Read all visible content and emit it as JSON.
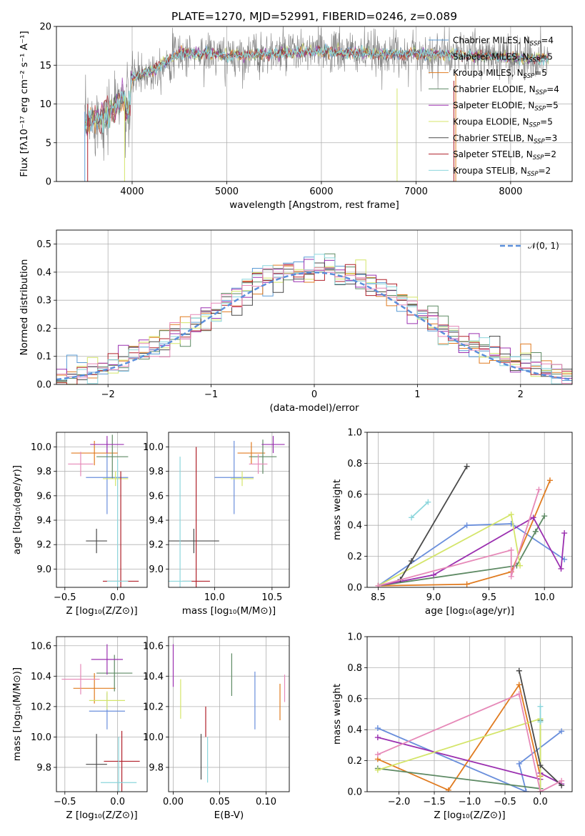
{
  "colors": {
    "Chabrier MILES": "#5b9bd5",
    "Salpeter MILES": "#a9a9a9",
    "Kroupa MILES": "#e07b20",
    "Chabrier ELODIE": "#5e8a64",
    "Salpeter ELODIE": "#9b30b0",
    "Kroupa ELODIE": "#d4e56a",
    "Chabrier STELIB": "#4a4a4a",
    "Salpeter STELIB": "#b0202a",
    "Kroupa STELIB": "#8cd6dc",
    "pink": "#e689b8",
    "blue2": "#6a8fdc",
    "gauss": "#5b8fdb",
    "grid": "#b0b0b0"
  },
  "chart_data": [
    {
      "type": "line",
      "title": "PLATE=1270, MJD=52991, FIBERID=0246, z=0.089",
      "xlabel": "wavelength [Angstrom, rest frame]",
      "ylabel": "Flux [fλ10⁻¹⁷ erg cm⁻² s⁻¹ A⁻¹]",
      "xlim": [
        3200,
        8650
      ],
      "ylim": [
        0,
        20
      ],
      "xticks": [
        "4000",
        "5000",
        "6000",
        "7000",
        "8000"
      ],
      "yticks": [
        "0",
        "5",
        "10",
        "15",
        "20"
      ],
      "legend_position": "upper right",
      "legend": [
        "Chabrier MILES, N_SSP=4",
        "Salpeter MILES, N_SSP=5",
        "Kroupa MILES, N_SSP=5",
        "Chabrier ELODIE, N_SSP=4",
        "Salpeter ELODIE, N_SSP=5",
        "Kroupa ELODIE, N_SSP=5",
        "Chabrier STELIB, N_SSP=3",
        "Salpeter STELIB, N_SSP=2",
        "Kroupa STELIB, N_SSP=2"
      ],
      "continuum": [
        [
          3500,
          7.5
        ],
        [
          3700,
          8.5
        ],
        [
          3850,
          10
        ],
        [
          3950,
          11.5
        ],
        [
          4000,
          13.3
        ],
        [
          4200,
          14.3
        ],
        [
          4500,
          16.5
        ],
        [
          4800,
          16.5
        ],
        [
          5000,
          16.2
        ],
        [
          5500,
          16.5
        ],
        [
          6000,
          16.8
        ],
        [
          6500,
          16.5
        ],
        [
          7000,
          16.5
        ],
        [
          7500,
          16.3
        ],
        [
          8000,
          16
        ],
        [
          8400,
          15.8
        ]
      ]
    },
    {
      "type": "histogram",
      "xlabel": "(data-model)/error",
      "ylabel": "Normed distribution",
      "xlim": [
        -2.5,
        2.5
      ],
      "ylim": [
        0,
        0.55
      ],
      "xticks": [
        "−2",
        "−1",
        "0",
        "1",
        "2"
      ],
      "yticks": [
        "0.0",
        "0.1",
        "0.2",
        "0.3",
        "0.4",
        "0.5"
      ],
      "legend": [
        "𝒩(0, 1)"
      ],
      "legend_position": "upper right",
      "bins": 50,
      "reference": "normal(0,1) pdf, dashed"
    },
    {
      "type": "errorbar",
      "xlabel": "Z [log₁₀(Z/Z⊙)]",
      "ylabel": "age  [log₁₀(age/yr)]",
      "xlim": [
        -0.58,
        0.28
      ],
      "ylim": [
        8.85,
        10.12
      ],
      "xticks": [
        "−0.5",
        "0.0"
      ],
      "yticks": [
        "9.0",
        "9.2",
        "9.4",
        "9.6",
        "9.8",
        "10.0"
      ],
      "points": [
        {
          "x": -0.1,
          "y": 9.75,
          "xerr": 0.2,
          "yerr": 0.3,
          "series": "blue2"
        },
        {
          "x": -0.22,
          "y": 9.95,
          "xerr": 0.22,
          "yerr": 0.1,
          "series": "Kroupa MILES"
        },
        {
          "x": -0.05,
          "y": 9.92,
          "xerr": 0.15,
          "yerr": 0.18,
          "series": "Chabrier ELODIE"
        },
        {
          "x": -0.1,
          "y": 10.02,
          "xerr": 0.16,
          "yerr": 0.07,
          "series": "Salpeter ELODIE"
        },
        {
          "x": -0.02,
          "y": 9.74,
          "xerr": 0.12,
          "yerr": 0.06,
          "series": "Kroupa ELODIE"
        },
        {
          "x": -0.2,
          "y": 9.23,
          "xerr": 0.1,
          "yerr": 0.1,
          "series": "Chabrier STELIB"
        },
        {
          "x": 0.03,
          "y": 8.9,
          "xerr": 0.17,
          "yerr": 0.9,
          "series": "Salpeter STELIB"
        },
        {
          "x": 0.0,
          "y": 8.9,
          "xerr": 0.1,
          "yerr": 1.0,
          "series": "Kroupa STELIB"
        },
        {
          "x": -0.35,
          "y": 9.86,
          "xerr": 0.12,
          "yerr": 0.1,
          "series": "pink"
        }
      ]
    },
    {
      "type": "errorbar",
      "xlabel": "mass [log₁₀(M/M⊙)]",
      "xlim": [
        9.6,
        10.65
      ],
      "ylim": [
        8.85,
        10.12
      ],
      "xticks": [
        "10.0",
        "10.5"
      ],
      "yticks": [
        "9.0",
        "9.2",
        "9.4",
        "9.6",
        "9.8",
        "10.0"
      ],
      "points": [
        {
          "x": 10.17,
          "y": 9.75,
          "xerr": 0.17,
          "yerr": 0.3,
          "series": "blue2"
        },
        {
          "x": 10.32,
          "y": 9.95,
          "xerr": 0.12,
          "yerr": 0.09,
          "series": "Kroupa MILES"
        },
        {
          "x": 10.42,
          "y": 9.92,
          "xerr": 0.12,
          "yerr": 0.14,
          "series": "Chabrier ELODIE"
        },
        {
          "x": 10.51,
          "y": 10.02,
          "xerr": 0.1,
          "yerr": 0.07,
          "series": "Salpeter ELODIE"
        },
        {
          "x": 10.24,
          "y": 9.74,
          "xerr": 0.1,
          "yerr": 0.06,
          "series": "Kroupa ELODIE"
        },
        {
          "x": 9.82,
          "y": 9.23,
          "xerr": 0.22,
          "yerr": 0.1,
          "series": "Chabrier STELIB"
        },
        {
          "x": 9.84,
          "y": 8.9,
          "xerr": 0.12,
          "yerr": 1.1,
          "series": "Salpeter STELIB"
        },
        {
          "x": 9.7,
          "y": 8.9,
          "xerr": 0.1,
          "yerr": 1.02,
          "series": "Kroupa STELIB"
        },
        {
          "x": 10.38,
          "y": 9.86,
          "xerr": 0.08,
          "yerr": 0.08,
          "series": "pink"
        }
      ]
    },
    {
      "type": "line",
      "xlabel": "age  [log₁₀(age/yr)]",
      "ylabel": "mass weight",
      "xlim": [
        8.4,
        10.25
      ],
      "ylim": [
        0,
        1.0
      ],
      "xticks": [
        "8.5",
        "9.0",
        "9.5",
        "10.0"
      ],
      "yticks": [
        "0.0",
        "0.2",
        "0.4",
        "0.6",
        "0.8",
        "1.0"
      ],
      "series": [
        {
          "color": "blue2",
          "points": [
            [
              8.5,
              0.01
            ],
            [
              9.3,
              0.4
            ],
            [
              9.7,
              0.41
            ],
            [
              10.18,
              0.18
            ]
          ]
        },
        {
          "color": "Kroupa MILES",
          "points": [
            [
              8.5,
              0.01
            ],
            [
              9.3,
              0.02
            ],
            [
              9.7,
              0.1
            ],
            [
              10.05,
              0.69
            ]
          ]
        },
        {
          "color": "Chabrier ELODIE",
          "points": [
            [
              8.5,
              0.01
            ],
            [
              9.75,
              0.14
            ],
            [
              9.92,
              0.36
            ],
            [
              10.0,
              0.46
            ]
          ]
        },
        {
          "color": "Salpeter ELODIE",
          "points": [
            [
              8.5,
              0.01
            ],
            [
              9.0,
              0.08
            ],
            [
              9.9,
              0.45
            ],
            [
              10.15,
              0.12
            ],
            [
              10.18,
              0.35
            ]
          ]
        },
        {
          "color": "Kroupa ELODIE",
          "points": [
            [
              8.5,
              0.01
            ],
            [
              9.7,
              0.47
            ],
            [
              9.78,
              0.14
            ]
          ]
        },
        {
          "color": "Chabrier STELIB",
          "points": [
            [
              8.7,
              0.05
            ],
            [
              8.8,
              0.17
            ],
            [
              9.3,
              0.78
            ]
          ]
        },
        {
          "color": "Kroupa STELIB",
          "points": [
            [
              8.8,
              0.45
            ],
            [
              8.95,
              0.55
            ]
          ]
        },
        {
          "color": "pink",
          "points": [
            [
              8.5,
              0.01
            ],
            [
              9.7,
              0.24
            ],
            [
              9.7,
              0.07
            ],
            [
              9.95,
              0.63
            ]
          ]
        }
      ]
    },
    {
      "type": "errorbar",
      "xlabel": "Z [log₁₀(Z/Z⊙)]",
      "ylabel": "mass [log₁₀(M/M⊙)]",
      "xlim": [
        -0.58,
        0.28
      ],
      "ylim": [
        9.64,
        10.66
      ],
      "xticks": [
        "−0.5",
        "0.0"
      ],
      "yticks": [
        "9.8",
        "10.0",
        "10.2",
        "10.4",
        "10.6"
      ],
      "points": [
        {
          "x": -0.1,
          "y": 10.17,
          "xerr": 0.17,
          "yerr": 0.12,
          "series": "blue2"
        },
        {
          "x": -0.22,
          "y": 10.32,
          "xerr": 0.2,
          "yerr": 0.1,
          "series": "Kroupa MILES"
        },
        {
          "x": -0.03,
          "y": 10.42,
          "xerr": 0.17,
          "yerr": 0.12,
          "series": "Chabrier ELODIE"
        },
        {
          "x": -0.1,
          "y": 10.51,
          "xerr": 0.15,
          "yerr": 0.1,
          "series": "Salpeter ELODIE"
        },
        {
          "x": -0.1,
          "y": 10.24,
          "xerr": 0.17,
          "yerr": 0.06,
          "series": "Kroupa ELODIE"
        },
        {
          "x": -0.2,
          "y": 9.82,
          "xerr": 0.1,
          "yerr": 0.2,
          "series": "Chabrier STELIB"
        },
        {
          "x": 0.04,
          "y": 9.84,
          "xerr": 0.17,
          "yerr": 0.2,
          "series": "Salpeter STELIB"
        },
        {
          "x": 0.01,
          "y": 9.7,
          "xerr": 0.17,
          "yerr": 0.3,
          "series": "Kroupa STELIB"
        },
        {
          "x": -0.35,
          "y": 10.38,
          "xerr": 0.18,
          "yerr": 0.1,
          "series": "pink"
        }
      ]
    },
    {
      "type": "errorbar",
      "xlabel": "E(B-V)",
      "xlim": [
        -0.005,
        0.125
      ],
      "ylim": [
        9.64,
        10.66
      ],
      "xticks": [
        "0.00",
        "0.05",
        "0.10"
      ],
      "yticks": [
        "9.8",
        "10.0",
        "10.2",
        "10.4",
        "10.6"
      ],
      "points": [
        {
          "x": 0.0,
          "y": 10.47,
          "yerr": 0.14,
          "series": "Salpeter ELODIE"
        },
        {
          "x": 0.008,
          "y": 10.25,
          "yerr": 0.13,
          "series": "Kroupa ELODIE"
        },
        {
          "x": 0.03,
          "y": 9.87,
          "yerr": 0.15,
          "series": "Chabrier STELIB"
        },
        {
          "x": 0.035,
          "y": 10.1,
          "yerr": 0.1,
          "series": "Salpeter STELIB"
        },
        {
          "x": 0.037,
          "y": 9.85,
          "yerr": 0.15,
          "series": "Kroupa STELIB"
        },
        {
          "x": 0.063,
          "y": 10.41,
          "yerr": 0.14,
          "series": "Chabrier ELODIE"
        },
        {
          "x": 0.088,
          "y": 10.24,
          "yerr": 0.19,
          "series": "blue2"
        },
        {
          "x": 0.115,
          "y": 10.23,
          "yerr": 0.12,
          "series": "Kroupa MILES"
        },
        {
          "x": 0.12,
          "y": 10.32,
          "yerr": 0.09,
          "series": "pink"
        }
      ]
    },
    {
      "type": "line",
      "xlabel": "Z [log₁₀(Z/Z⊙)]",
      "ylabel": "mass weight",
      "xlim": [
        -2.45,
        0.45
      ],
      "ylim": [
        0,
        1.0
      ],
      "xticks": [
        "−2.0",
        "−1.5",
        "−1.0",
        "−0.5",
        "0.0"
      ],
      "yticks": [
        "0.0",
        "0.2",
        "0.4",
        "0.6",
        "0.8",
        "1.0"
      ],
      "series": [
        {
          "color": "blue2",
          "points": [
            [
              -2.3,
              0.41
            ],
            [
              -0.2,
              0.0
            ],
            [
              -0.3,
              0.18
            ],
            [
              0.3,
              0.39
            ]
          ]
        },
        {
          "color": "Kroupa MILES",
          "points": [
            [
              -2.3,
              0.21
            ],
            [
              -1.3,
              0.01
            ],
            [
              -0.3,
              0.69
            ],
            [
              0.0,
              0.1
            ]
          ]
        },
        {
          "color": "Chabrier ELODIE",
          "points": [
            [
              -2.3,
              0.15
            ],
            [
              0.0,
              0.02
            ],
            [
              0.0,
              0.46
            ]
          ]
        },
        {
          "color": "Salpeter ELODIE",
          "points": [
            [
              -2.3,
              0.35
            ],
            [
              0.0,
              0.08
            ],
            [
              0.0,
              0.12
            ],
            [
              0.3,
              0.05
            ]
          ]
        },
        {
          "color": "Kroupa ELODIE",
          "points": [
            [
              -2.3,
              0.14
            ],
            [
              0.0,
              0.47
            ],
            [
              0.0,
              0.0
            ]
          ]
        },
        {
          "color": "Chabrier STELIB",
          "points": [
            [
              -0.3,
              0.78
            ],
            [
              0.0,
              0.17
            ],
            [
              0.3,
              0.04
            ]
          ]
        },
        {
          "color": "Kroupa STELIB",
          "points": [
            [
              0.0,
              0.55
            ],
            [
              0.0,
              0.45
            ]
          ]
        },
        {
          "color": "pink",
          "points": [
            [
              -2.3,
              0.24
            ],
            [
              -0.3,
              0.63
            ],
            [
              0.0,
              0.0
            ],
            [
              0.3,
              0.07
            ]
          ]
        }
      ]
    }
  ]
}
